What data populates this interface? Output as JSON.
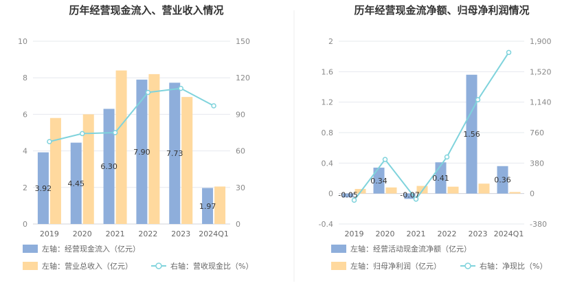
{
  "colors": {
    "bar_blue": "#8eaedb",
    "bar_orange": "#ffd99e",
    "line_cyan": "#7fd3dc",
    "grid": "#e6e8ee",
    "divider": "#eeeeee"
  },
  "chart_data": [
    {
      "type": "bar",
      "title": "历年经营现金流入、营业收入情况",
      "categories": [
        "2019",
        "2020",
        "2021",
        "2022",
        "2023",
        "2024Q1"
      ],
      "y_left": {
        "ticks": [
          "0",
          "2",
          "4",
          "6",
          "8",
          "10"
        ],
        "range": [
          0,
          10
        ]
      },
      "y_right": {
        "ticks": [
          "0",
          "30",
          "60",
          "90",
          "120",
          "150"
        ],
        "range": [
          0,
          150
        ]
      },
      "series": [
        {
          "name": "左轴：经营现金流入（亿元）",
          "axis": "left",
          "kind": "bar",
          "color": "#8eaedb",
          "values": [
            3.92,
            4.45,
            6.3,
            7.9,
            7.73,
            1.97
          ],
          "labels": [
            "3.92",
            "4.45",
            "6.30",
            "7.90",
            "7.73",
            "1.97"
          ]
        },
        {
          "name": "左轴：营业总收入（亿元）",
          "axis": "left",
          "kind": "bar",
          "color": "#ffd99e",
          "values": [
            5.8,
            6.0,
            8.4,
            8.2,
            6.95,
            2.05
          ]
        },
        {
          "name": "右轴：营收现金比（%）",
          "axis": "right",
          "kind": "line",
          "color": "#7fd3dc",
          "values": [
            67.6,
            74.2,
            75.0,
            108.0,
            111.3,
            97.0
          ]
        }
      ],
      "legend": {
        "placement": "bottom-left"
      },
      "grid": true
    },
    {
      "type": "bar",
      "title": "历年经营现金流净额、归母净利润情况",
      "categories": [
        "2019",
        "2020",
        "2021",
        "2022",
        "2023",
        "2024Q1"
      ],
      "y_left": {
        "ticks": [
          "-0.4",
          "0",
          "0.4",
          "0.8",
          "1.2",
          "1.6",
          "2"
        ],
        "range": [
          -0.4,
          2
        ]
      },
      "y_right": {
        "ticks": [
          "-380",
          "0",
          "380",
          "760",
          "1,140",
          "1,520",
          "1,900"
        ],
        "range": [
          -380,
          1900
        ]
      },
      "series": [
        {
          "name": "左轴：经营活动现金流净额（亿元）",
          "axis": "left",
          "kind": "bar",
          "color": "#8eaedb",
          "values": [
            -0.05,
            0.34,
            -0.07,
            0.41,
            1.56,
            0.36
          ],
          "labels": [
            "-0.05",
            "0.34",
            "-0.07",
            "0.41",
            "1.56",
            "0.36"
          ]
        },
        {
          "name": "左轴：归母净利润（亿元）",
          "axis": "left",
          "kind": "bar",
          "color": "#ffd99e",
          "values": [
            0.06,
            0.08,
            0.1,
            0.09,
            0.13,
            0.02
          ]
        },
        {
          "name": "右轴：净现比（%）",
          "axis": "right",
          "kind": "line",
          "color": "#7fd3dc",
          "values": [
            -83,
            425,
            -70,
            456,
            1170,
            1760
          ]
        }
      ],
      "legend": {
        "placement": "bottom-left"
      },
      "grid": true
    }
  ]
}
